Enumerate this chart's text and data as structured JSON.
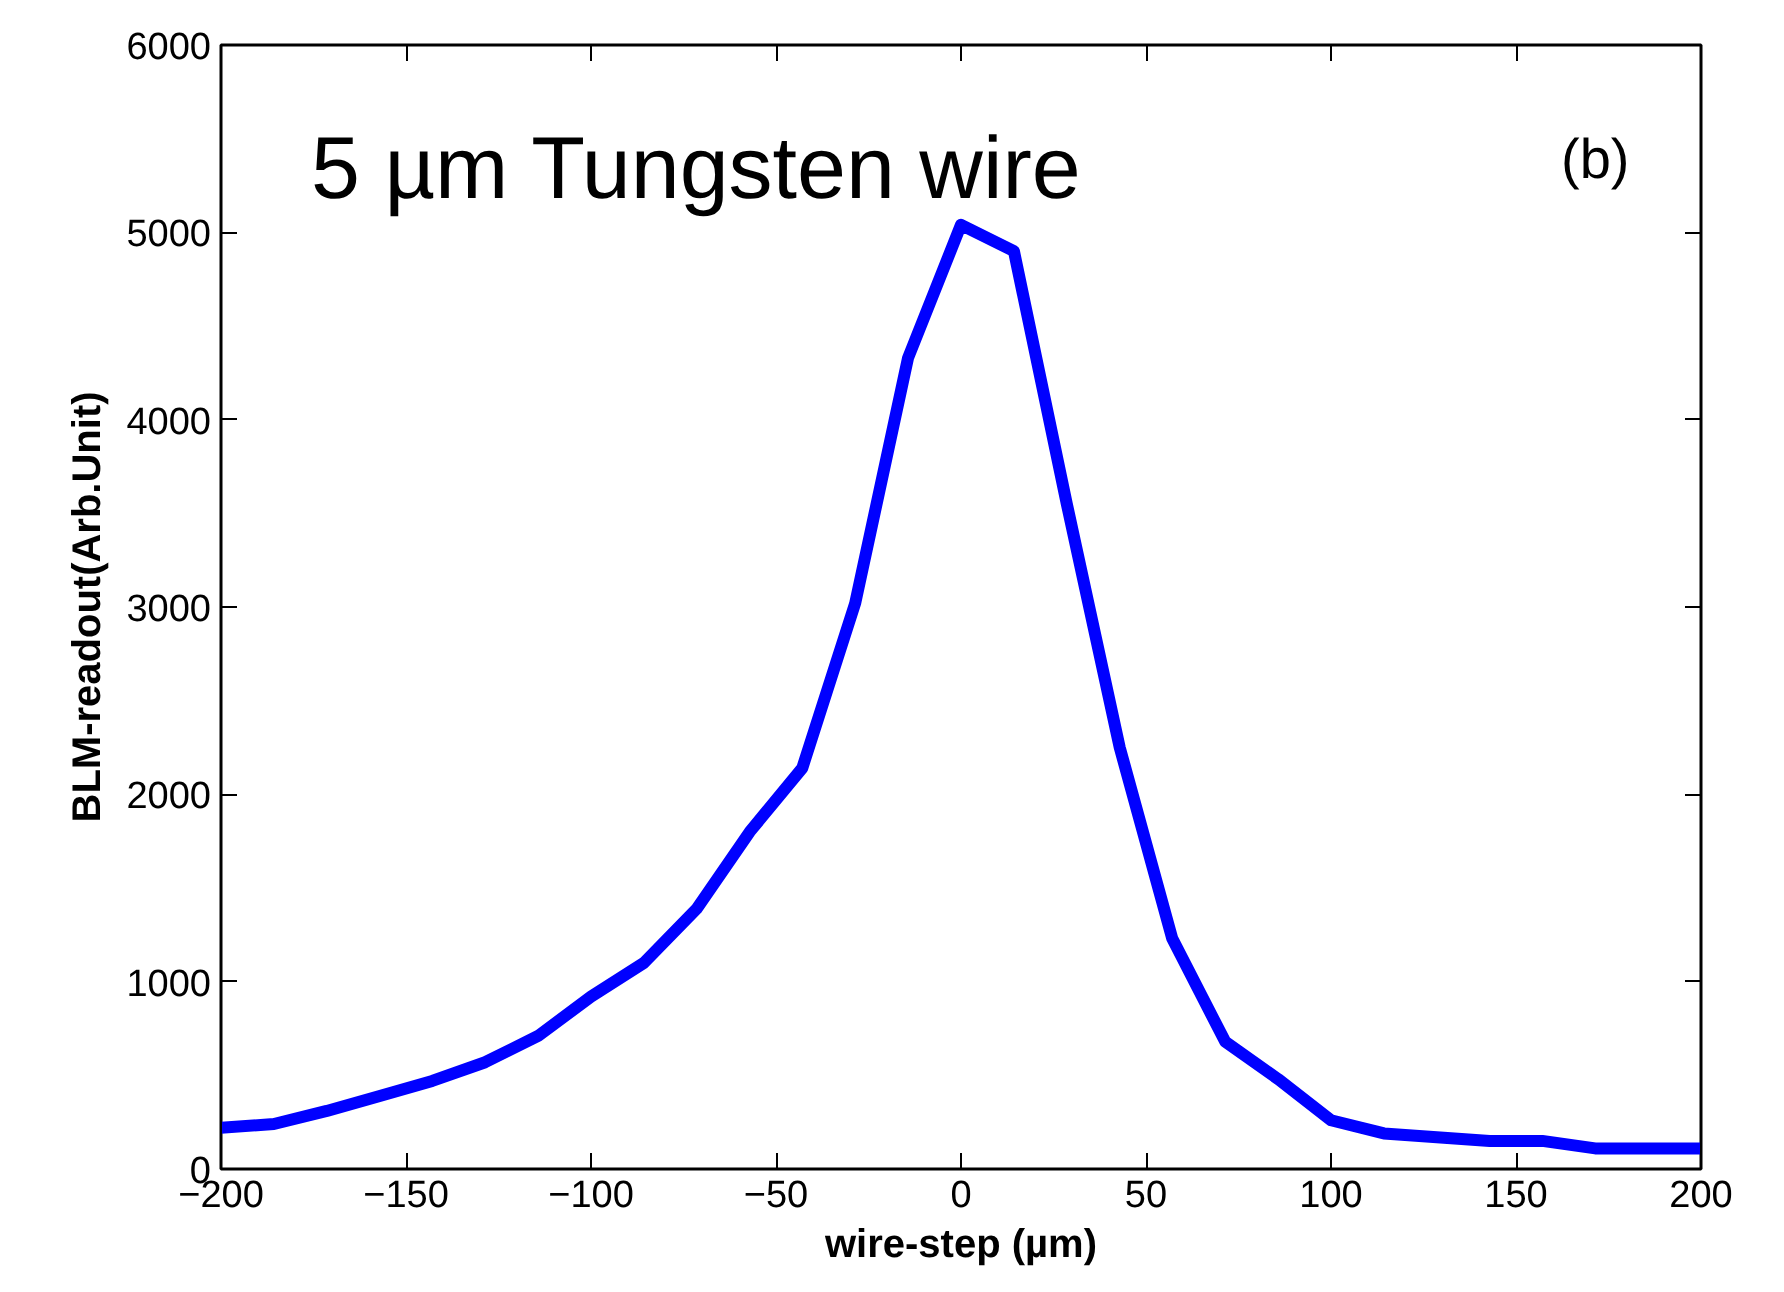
{
  "chart_data": {
    "type": "line",
    "xlabel": "wire-step (µm)",
    "ylabel": "BLM-readout(Arb.Unit)",
    "annotations": [
      "5 µm Tungsten wire",
      "(b)"
    ],
    "x": [
      -200,
      -185.7,
      -171.4,
      -157.1,
      -142.9,
      -128.6,
      -114.3,
      -100,
      -85.7,
      -71.4,
      -57.1,
      -42.9,
      -28.6,
      -14.3,
      0,
      14.3,
      28.6,
      42.9,
      57.1,
      71.4,
      85.7,
      100,
      114.3,
      128.6,
      142.9,
      157.1,
      171.4,
      185.7,
      200
    ],
    "series": [
      {
        "color": "#0000ff",
        "values": [
          220,
          240,
          310,
          390,
          470,
          570,
          710,
          920,
          1100,
          1390,
          1800,
          2140,
          3020,
          4330,
          5040,
          4900,
          3550,
          2250,
          1230,
          680,
          480,
          260,
          190,
          170,
          150,
          150,
          110,
          110,
          110
        ]
      }
    ],
    "xlim": [
      -200,
      200
    ],
    "xticks": [
      -200,
      -150,
      -100,
      -50,
      0,
      50,
      100,
      150,
      200
    ],
    "ylim": [
      0,
      6000
    ],
    "yticks": [
      0,
      1000,
      2000,
      3000,
      4000,
      5000,
      6000
    ],
    "grid": false,
    "line_style": "solid",
    "marker": "none"
  }
}
